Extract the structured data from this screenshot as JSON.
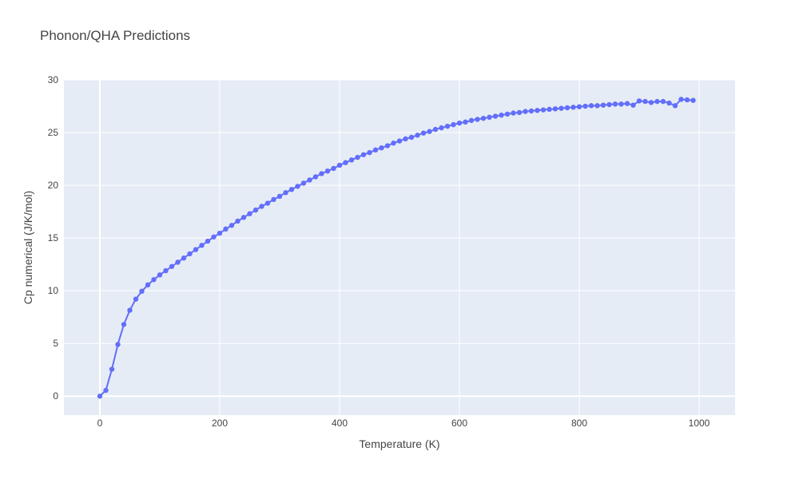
{
  "chart_data": {
    "type": "line",
    "title": "Phonon/QHA Predictions",
    "xlabel": "Temperature (K)",
    "ylabel": "Cp numerical (J/K/mol)",
    "xlim": [
      -60,
      1060
    ],
    "ylim": [
      -1.8,
      30
    ],
    "x_ticks": [
      0,
      200,
      400,
      600,
      800,
      1000
    ],
    "y_ticks": [
      0,
      5,
      10,
      15,
      20,
      25,
      30
    ],
    "grid": true,
    "legend": "none",
    "series": [
      {
        "color": "#636efa",
        "mode": "lines+markers",
        "x": [
          0,
          10,
          20,
          30,
          40,
          50,
          60,
          70,
          80,
          90,
          100,
          110,
          120,
          130,
          140,
          150,
          160,
          170,
          180,
          190,
          200,
          210,
          220,
          230,
          240,
          250,
          260,
          270,
          280,
          290,
          300,
          310,
          320,
          330,
          340,
          350,
          360,
          370,
          380,
          390,
          400,
          410,
          420,
          430,
          440,
          450,
          460,
          470,
          480,
          490,
          500,
          510,
          520,
          530,
          540,
          550,
          560,
          570,
          580,
          590,
          600,
          610,
          620,
          630,
          640,
          650,
          660,
          670,
          680,
          690,
          700,
          710,
          720,
          730,
          740,
          750,
          760,
          770,
          780,
          790,
          800,
          810,
          820,
          830,
          840,
          850,
          860,
          870,
          880,
          890,
          900,
          910,
          920,
          930,
          940,
          950,
          960,
          970,
          980,
          990
        ],
        "y": [
          0.0,
          0.55,
          2.55,
          4.9,
          6.8,
          8.15,
          9.2,
          9.95,
          10.55,
          11.05,
          11.5,
          11.9,
          12.3,
          12.7,
          13.1,
          13.5,
          13.9,
          14.3,
          14.7,
          15.1,
          15.45,
          15.85,
          16.2,
          16.6,
          16.95,
          17.3,
          17.65,
          18.0,
          18.3,
          18.65,
          18.95,
          19.3,
          19.6,
          19.9,
          20.2,
          20.5,
          20.8,
          21.1,
          21.35,
          21.6,
          21.9,
          22.15,
          22.4,
          22.65,
          22.9,
          23.1,
          23.35,
          23.55,
          23.75,
          24.0,
          24.2,
          24.4,
          24.55,
          24.75,
          24.95,
          25.1,
          25.3,
          25.45,
          25.6,
          25.75,
          25.9,
          26.0,
          26.15,
          26.25,
          26.35,
          26.45,
          26.55,
          26.65,
          26.75,
          26.85,
          26.9,
          27.0,
          27.05,
          27.1,
          27.15,
          27.2,
          27.25,
          27.3,
          27.35,
          27.4,
          27.45,
          27.5,
          27.55,
          27.55,
          27.6,
          27.65,
          27.7,
          27.7,
          27.75,
          27.6,
          28.0,
          27.95,
          27.85,
          27.95,
          27.95,
          27.8,
          27.55,
          28.15,
          28.1,
          28.05
        ]
      }
    ]
  }
}
